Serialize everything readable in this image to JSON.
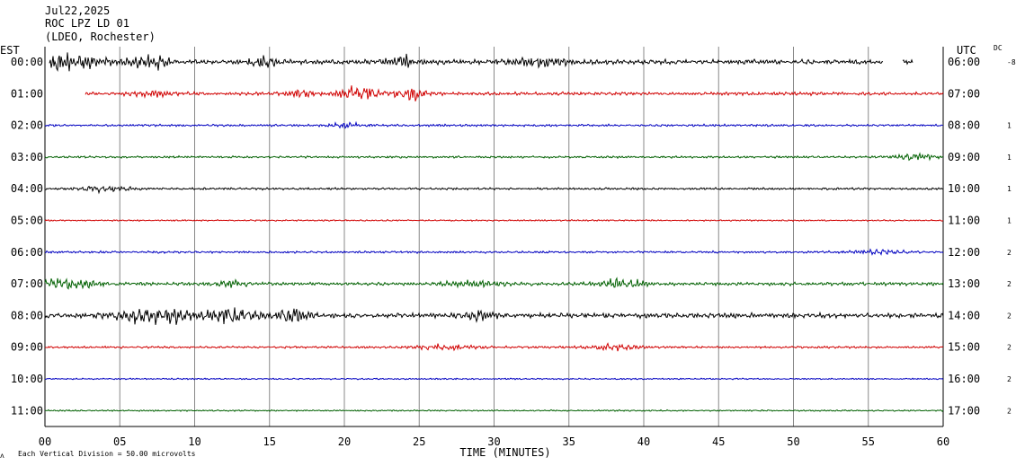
{
  "header": {
    "date": "Jul22,2025",
    "station": "ROC LPZ LD 01",
    "network": "(LDEO, Rochester)"
  },
  "left_axis_label": "EST",
  "right_axis_label": "UTC",
  "dc_label": "DC",
  "footer_note": "Each Vertical Division =   50.00 microvolts",
  "colors": {
    "trace_cycle": [
      "#000000",
      "#d00000",
      "#0000c0",
      "#006000"
    ],
    "grid": "#888888"
  },
  "chart_data": {
    "type": "line",
    "title": "",
    "xlabel": "TIME (MINUTES)",
    "xlim": [
      0,
      60
    ],
    "x_ticks": [
      "00",
      "05",
      "10",
      "15",
      "20",
      "25",
      "30",
      "35",
      "40",
      "45",
      "50",
      "55",
      "60"
    ],
    "x_tick_values": [
      0,
      5,
      10,
      15,
      20,
      25,
      30,
      35,
      40,
      45,
      50,
      55,
      60
    ],
    "rows": [
      {
        "est": "00:00",
        "utc": "06:00",
        "dc": "-8",
        "start_min": 0.3,
        "end_min": 58.0,
        "gap": [
          56.0,
          57.3
        ],
        "activity": "high",
        "bursts": [
          [
            0.5,
            3.0,
            10
          ],
          [
            7.0,
            1.2,
            8
          ],
          [
            24.0,
            1.0,
            6
          ],
          [
            14.5,
            1.0,
            5
          ],
          [
            33.0,
            2.0,
            4
          ]
        ]
      },
      {
        "est": "01:00",
        "utc": "07:00",
        "dc": "",
        "start_min": 2.7,
        "end_min": 60,
        "activity": "medium",
        "bursts": [
          [
            21.0,
            1.5,
            7
          ],
          [
            24.5,
            1.0,
            6
          ],
          [
            17.0,
            1.0,
            4
          ],
          [
            7.0,
            1.5,
            3
          ]
        ]
      },
      {
        "est": "02:00",
        "utc": "08:00",
        "dc": "1",
        "start_min": 0,
        "end_min": 60,
        "activity": "low",
        "bursts": [
          [
            20.0,
            1.0,
            3
          ]
        ]
      },
      {
        "est": "03:00",
        "utc": "09:00",
        "dc": "1",
        "start_min": 0,
        "end_min": 60,
        "activity": "low",
        "bursts": [
          [
            58.0,
            1.5,
            3
          ]
        ]
      },
      {
        "est": "04:00",
        "utc": "10:00",
        "dc": "1",
        "start_min": 0,
        "end_min": 60,
        "activity": "low",
        "bursts": [
          [
            4.0,
            1.5,
            3
          ]
        ]
      },
      {
        "est": "05:00",
        "utc": "11:00",
        "dc": "1",
        "start_min": 0,
        "end_min": 60,
        "activity": "quiet",
        "bursts": []
      },
      {
        "est": "06:00",
        "utc": "12:00",
        "dc": "2",
        "start_min": 0,
        "end_min": 60,
        "activity": "low",
        "bursts": [
          [
            56.0,
            2.0,
            2
          ]
        ]
      },
      {
        "est": "07:00",
        "utc": "13:00",
        "dc": "2",
        "start_min": 0,
        "end_min": 60,
        "activity": "medium",
        "bursts": [
          [
            1.0,
            2.5,
            5
          ],
          [
            38.5,
            1.5,
            5
          ],
          [
            29.0,
            2.0,
            3
          ],
          [
            12.5,
            1.0,
            3
          ]
        ]
      },
      {
        "est": "08:00",
        "utc": "14:00",
        "dc": "2",
        "start_min": 0,
        "end_min": 60,
        "activity": "high",
        "bursts": [
          [
            6.5,
            2.0,
            8
          ],
          [
            12.5,
            1.5,
            9
          ],
          [
            16.5,
            1.2,
            8
          ],
          [
            9.0,
            1.0,
            5
          ],
          [
            29.0,
            1.0,
            4
          ]
        ]
      },
      {
        "est": "09:00",
        "utc": "15:00",
        "dc": "2",
        "start_min": 0,
        "end_min": 60,
        "activity": "low",
        "bursts": [
          [
            27.0,
            2.0,
            3
          ],
          [
            38.0,
            1.5,
            3
          ]
        ]
      },
      {
        "est": "10:00",
        "utc": "16:00",
        "dc": "2",
        "start_min": 0,
        "end_min": 60,
        "activity": "quiet",
        "bursts": []
      },
      {
        "est": "11:00",
        "utc": "17:00",
        "dc": "2",
        "start_min": 0,
        "end_min": 60,
        "activity": "quiet",
        "bursts": []
      }
    ],
    "grid": true
  }
}
